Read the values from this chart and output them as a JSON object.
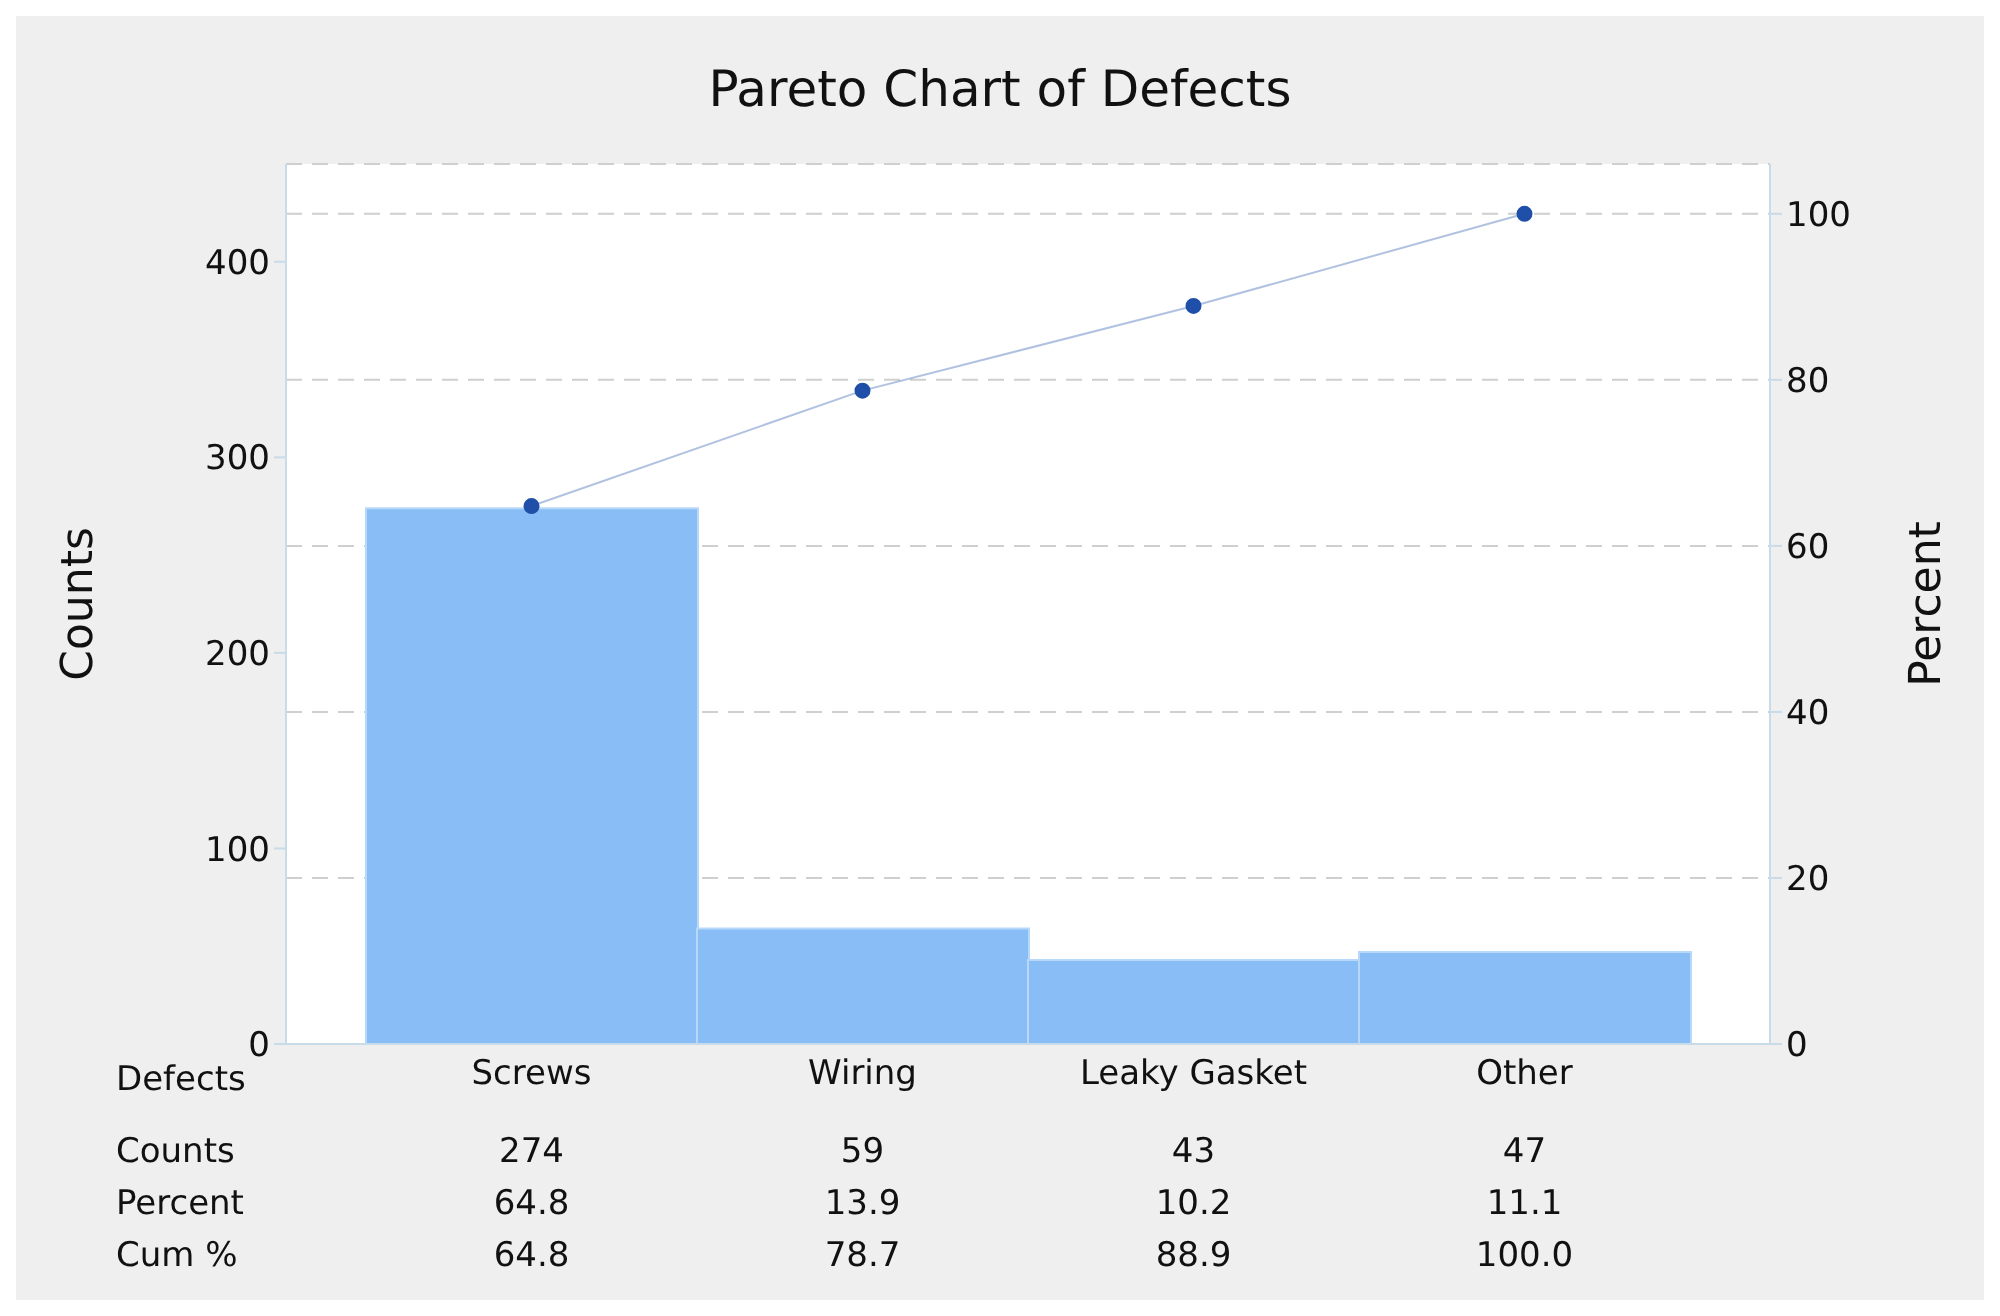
{
  "chart_data": {
    "type": "bar",
    "title": "Pareto Chart of Defects",
    "xlabel": "Defects",
    "ylabel": "Counts",
    "y2label": "Percent",
    "categories": [
      "Screws",
      "Wiring",
      "Leaky Gasket",
      "Other"
    ],
    "series": [
      {
        "color": "#88bdf5",
        "values": [
          274,
          59,
          43,
          47
        ]
      },
      {
        "type": "line",
        "axis": "y2",
        "color": "#1f4fa8",
        "values": [
          64.8,
          78.7,
          88.9,
          100.0
        ],
        "value_labels": [
          "64.8",
          "78.7",
          "88.9",
          "100.0"
        ]
      }
    ],
    "annotations": [
      "Counts",
      "Percent",
      "Cum %",
      "64.8",
      "13.9",
      "10.2",
      "11.1"
    ],
    "ylim": [
      0,
      450
    ],
    "yticks": [
      0,
      100,
      200,
      300,
      400
    ],
    "y2lim": [
      0,
      106
    ],
    "y2ticks": [
      0,
      20,
      40,
      60,
      80,
      100
    ],
    "grid": "y",
    "marker": "circle",
    "line_style": "solid",
    "data_labels": true
  }
}
